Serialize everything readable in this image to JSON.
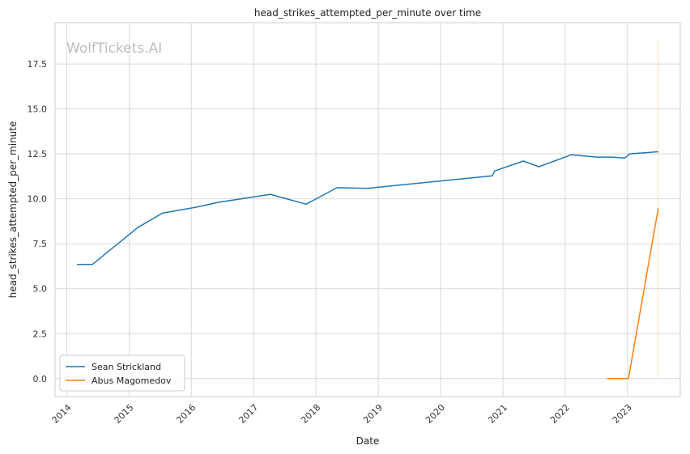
{
  "chart_data": {
    "type": "line",
    "title": "head_strikes_attempted_per_minute over time",
    "xlabel": "Date",
    "ylabel": "head_strikes_attempted_per_minute",
    "watermark": "WolfTickets.AI",
    "x_ticks": [
      "2014",
      "2015",
      "2016",
      "2017",
      "2018",
      "2019",
      "2020",
      "2021",
      "2022",
      "2023"
    ],
    "y_ticks": [
      "0.0",
      "2.5",
      "5.0",
      "7.5",
      "10.0",
      "12.5",
      "15.0",
      "17.5"
    ],
    "xlim": [
      "2013-10-24",
      "2023-11-07"
    ],
    "ylim": [
      -1.0,
      19.8
    ],
    "grid": true,
    "legend_position": "lower-left",
    "series": [
      {
        "name": "Sean Strickland",
        "color": "#1f77b4",
        "points": [
          [
            "2014-03-01",
            6.35
          ],
          [
            "2014-05-31",
            6.35
          ],
          [
            "2015-02-21",
            8.4
          ],
          [
            "2015-07-15",
            9.2
          ],
          [
            "2016-02-06",
            9.55
          ],
          [
            "2016-06-04",
            9.8
          ],
          [
            "2017-04-08",
            10.25
          ],
          [
            "2017-11-04",
            9.7
          ],
          [
            "2018-05-05",
            10.62
          ],
          [
            "2018-10-27",
            10.58
          ],
          [
            "2020-10-31",
            11.28
          ],
          [
            "2020-11-14",
            11.55
          ],
          [
            "2021-05-01",
            12.1
          ],
          [
            "2021-07-31",
            11.78
          ],
          [
            "2022-02-05",
            12.45
          ],
          [
            "2022-07-02",
            12.32
          ],
          [
            "2022-10-01",
            12.32
          ],
          [
            "2022-12-17",
            12.27
          ],
          [
            "2023-01-14",
            12.5
          ],
          [
            "2023-07-01",
            12.62
          ]
        ]
      },
      {
        "name": "Abus Magomedov",
        "color": "#ff7f0e",
        "points": [
          [
            "2022-09-03",
            0.0
          ],
          [
            "2023-01-07",
            0.0
          ],
          [
            "2023-07-01",
            9.47
          ]
        ],
        "spike": {
          "x": "2023-07-01",
          "from": 0.0,
          "to": 18.9
        }
      }
    ]
  }
}
